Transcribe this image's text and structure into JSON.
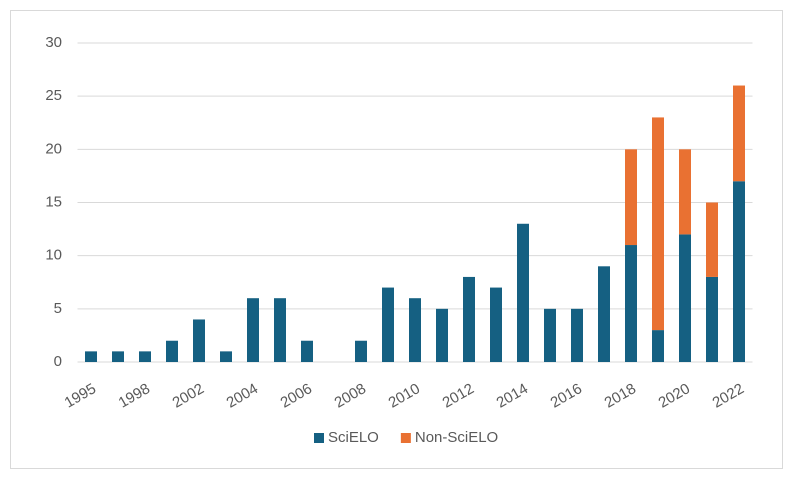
{
  "chart_data": {
    "type": "stacked_bar",
    "categories": [
      "1995",
      null,
      "1998",
      null,
      "2002",
      null,
      "2004",
      null,
      "2006",
      null,
      "2008",
      null,
      "2010",
      null,
      "2012",
      null,
      "2014",
      null,
      "2016",
      null,
      "2018",
      null,
      "2020",
      null,
      "2022"
    ],
    "series": [
      {
        "name": "SciELO",
        "color": "#156082",
        "values": [
          1,
          1,
          1,
          2,
          4,
          1,
          6,
          6,
          2,
          0,
          2,
          7,
          6,
          5,
          8,
          7,
          13,
          5,
          5,
          9,
          11,
          3,
          12,
          8,
          17
        ]
      },
      {
        "name": "Non-SciELO",
        "color": "#e97132",
        "values": [
          0,
          0,
          0,
          0,
          0,
          0,
          0,
          0,
          0,
          0,
          0,
          0,
          0,
          0,
          0,
          0,
          0,
          0,
          0,
          0,
          9,
          20,
          8,
          7,
          9
        ]
      }
    ],
    "ylim": [
      0,
      30
    ],
    "yticks": [
      0,
      5,
      10,
      15,
      20,
      25,
      30
    ],
    "grid": true,
    "legend": "bottom"
  }
}
